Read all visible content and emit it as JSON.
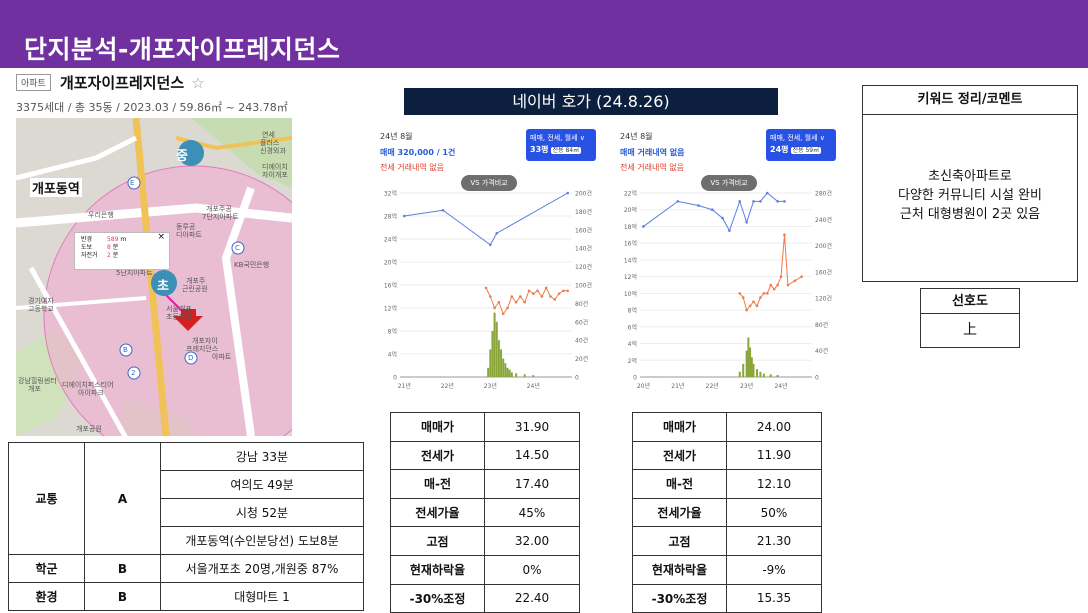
{
  "title": "단지분석-개포자이프레지던스",
  "listing": {
    "badge": "아파트",
    "name": "개포자이프레지던스",
    "star": "☆",
    "info": "3375세대 / 총 35동 / 2023.03 / 59.86㎡ ~ 243.78㎡"
  },
  "map": {
    "station_label": "개포동역",
    "marker_middle": "중",
    "marker_elem": "초",
    "popup": {
      "rows": [
        {
          "label": "반경",
          "value": "589",
          "unit": "m"
        },
        {
          "label": "도보",
          "value": "8",
          "unit": "분"
        },
        {
          "label": "자전거",
          "value": "2",
          "unit": "분"
        }
      ],
      "close": "×"
    },
    "labels": [
      "연세",
      "플러스",
      "신경외과",
      "디에이치",
      "자이개포",
      "우리은행",
      "개포주공",
      "7단지아파트",
      "동루공",
      "디아파트",
      "KB국민은행",
      "5단지아파트",
      "개포주",
      "근린공원",
      "서울개포",
      "초등학교",
      "경기여자",
      "고등학교",
      "개포자이",
      "프레지던스",
      "아파트",
      "강남힐링센터",
      "개포",
      "디에이치퍼스티어",
      "아이파크",
      "개포공원"
    ],
    "pins": [
      "E",
      "C",
      "B",
      "D",
      "2"
    ]
  },
  "transport": {
    "rows": [
      {
        "category": "교통",
        "grade": "A",
        "items": [
          "강남 33분",
          "여의도 49분",
          "시청 52분",
          "개포동역(수인분당선) 도보8분"
        ]
      },
      {
        "category": "학군",
        "grade": "B",
        "items": [
          "서울개포초 20명,개원중 87%"
        ]
      },
      {
        "category": "환경",
        "grade": "B",
        "items": [
          "대형마트 1"
        ]
      }
    ]
  },
  "naver_title": "네이버 호가 (24.8.26)",
  "charts": [
    {
      "date": "24년 8월",
      "price_line": "매매 320,000 / 1건",
      "none_line": "전세 거래내역 없음",
      "filter_top": "매매, 전세, 월세 ∨",
      "filter_size": "33평",
      "filter_sub": "전용 84㎡",
      "vs": "VS 가격비교"
    },
    {
      "date": "24년 8월",
      "price_line": "매매 거래내역 없음",
      "none_line": "전세 거래내역 없음",
      "filter_top": "매매, 전세, 월세 ∨",
      "filter_size": "24평",
      "filter_sub": "전용 59㎡",
      "vs": "VS 가격비교"
    }
  ],
  "chart_data": [
    {
      "type": "line",
      "x_ticks": [
        "21년",
        "22년",
        "23년",
        "24년"
      ],
      "y_left_ticks": [
        "0",
        "4억",
        "8억",
        "12억",
        "16억",
        "20억",
        "24억",
        "28억",
        "32억"
      ],
      "y_right_ticks": [
        "0",
        "20건",
        "40건",
        "60건",
        "80건",
        "100건",
        "120건",
        "140건",
        "160건",
        "180건",
        "200건"
      ],
      "ylim_left": [
        0,
        32
      ],
      "ylim_right": [
        0,
        200
      ],
      "x_range": [
        2020.9,
        2024.9
      ],
      "series": [
        {
          "color": "#5b7fe0",
          "x": [
            2021.0,
            2021.9,
            2023.0,
            2023.15,
            2024.8
          ],
          "y": [
            28,
            29,
            23,
            25,
            32
          ]
        },
        {
          "color": "#f07a4a",
          "x": [
            2022.9,
            2023.0,
            2023.1,
            2023.2,
            2023.3,
            2023.4,
            2023.5,
            2023.6,
            2023.7,
            2023.8,
            2023.9,
            2024.0,
            2024.1,
            2024.2,
            2024.3,
            2024.4,
            2024.5,
            2024.6,
            2024.7,
            2024.8
          ],
          "y": [
            15.5,
            14,
            12,
            13,
            11,
            12,
            14,
            13,
            14,
            13,
            15,
            14.5,
            15,
            14,
            15.5,
            14,
            13.5,
            14.5,
            15,
            15
          ]
        }
      ],
      "bars": {
        "color": "#8aa63a",
        "x": [
          2022.95,
          2023.0,
          2023.05,
          2023.1,
          2023.15,
          2023.2,
          2023.25,
          2023.3,
          2023.35,
          2023.4,
          2023.45,
          2023.5,
          2023.6,
          2023.8,
          2024.0
        ],
        "y": [
          10,
          30,
          50,
          70,
          60,
          40,
          30,
          20,
          15,
          10,
          8,
          5,
          4,
          3,
          2
        ]
      }
    },
    {
      "type": "line",
      "x_ticks": [
        "20년",
        "21년",
        "22년",
        "23년",
        "24년"
      ],
      "y_left_ticks": [
        "0",
        "2억",
        "4억",
        "6억",
        "8억",
        "10억",
        "12억",
        "14억",
        "16억",
        "18억",
        "20억",
        "22억"
      ],
      "y_right_ticks": [
        "0",
        "40건",
        "80건",
        "120건",
        "160건",
        "200건",
        "240건",
        "280건"
      ],
      "ylim_left": [
        0,
        22
      ],
      "ylim_right": [
        0,
        280
      ],
      "x_range": [
        2019.9,
        2024.9
      ],
      "series": [
        {
          "color": "#5b7fe0",
          "x": [
            2020.0,
            2021.0,
            2021.6,
            2022.0,
            2022.3,
            2022.5,
            2022.8,
            2023.0,
            2023.2,
            2023.4,
            2023.6,
            2023.9,
            2024.1
          ],
          "y": [
            18,
            21,
            20.5,
            20,
            19,
            17.5,
            21,
            18.5,
            21,
            21,
            22,
            21,
            21
          ]
        },
        {
          "color": "#f07a4a",
          "x": [
            2022.8,
            2022.9,
            2023.0,
            2023.1,
            2023.2,
            2023.3,
            2023.4,
            2023.5,
            2023.6,
            2023.7,
            2023.8,
            2023.9,
            2024.0,
            2024.1,
            2024.2,
            2024.4,
            2024.6
          ],
          "y": [
            10,
            9.5,
            8,
            8.5,
            9,
            8.5,
            9.5,
            10,
            10,
            11,
            10.5,
            11,
            12,
            17,
            11,
            11.5,
            12
          ]
        }
      ],
      "bars": {
        "color": "#8aa63a",
        "x": [
          2022.8,
          2022.9,
          2023.0,
          2023.05,
          2023.1,
          2023.15,
          2023.2,
          2023.3,
          2023.4,
          2023.5,
          2023.7,
          2023.9
        ],
        "y": [
          8,
          20,
          40,
          60,
          45,
          30,
          20,
          12,
          8,
          5,
          4,
          3
        ]
      }
    }
  ],
  "price_tables": [
    [
      {
        "k": "매매가",
        "v": "31.90"
      },
      {
        "k": "전세가",
        "v": "14.50"
      },
      {
        "k": "매-전",
        "v": "17.40"
      },
      {
        "k": "전세가율",
        "v": "45%"
      },
      {
        "k": "고점",
        "v": "32.00"
      },
      {
        "k": "현재하락율",
        "v": "0%"
      },
      {
        "k": "-30%조정",
        "v": "22.40"
      }
    ],
    [
      {
        "k": "매매가",
        "v": "24.00"
      },
      {
        "k": "전세가",
        "v": "11.90"
      },
      {
        "k": "매-전",
        "v": "12.10"
      },
      {
        "k": "전세가율",
        "v": "50%"
      },
      {
        "k": "고점",
        "v": "21.30"
      },
      {
        "k": "현재하락율",
        "v": "-9%"
      },
      {
        "k": "-30%조정",
        "v": "15.35"
      }
    ]
  ],
  "keywords": {
    "header": "키워드 정리/코멘트",
    "lines": [
      "초신축아파트로",
      "다양한 커뮤니티 시설 완비",
      "근처 대형병원이 2곳 있음"
    ]
  },
  "preference": {
    "header": "선호도",
    "value": "上"
  }
}
